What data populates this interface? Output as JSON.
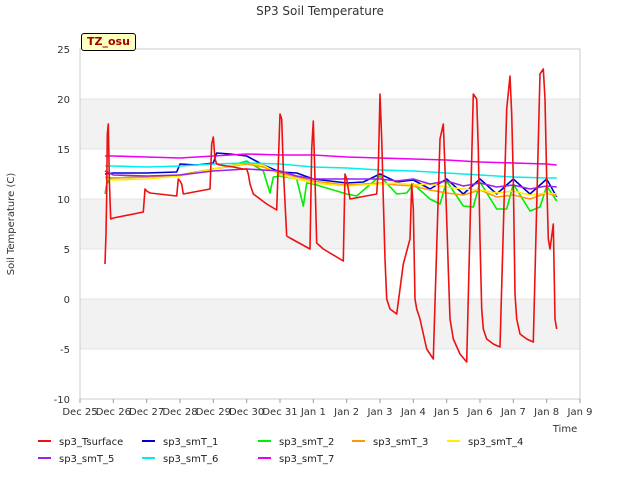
{
  "chart_data": {
    "type": "line",
    "title": "SP3 Soil Temperature",
    "xlabel": "Time",
    "ylabel": "Soil Temperature (C)",
    "site_label": "TZ_osu",
    "ylim": [
      -10,
      25
    ],
    "xlim": [
      0,
      15
    ],
    "yticks": [
      -10,
      -5,
      0,
      5,
      10,
      15,
      20,
      25
    ],
    "xticks": [
      {
        "x": 0,
        "label": "Dec 25"
      },
      {
        "x": 1,
        "label": "Dec 26"
      },
      {
        "x": 2,
        "label": "Dec 27"
      },
      {
        "x": 3,
        "label": "Dec 28"
      },
      {
        "x": 4,
        "label": "Dec 29"
      },
      {
        "x": 5,
        "label": "Dec 30"
      },
      {
        "x": 6,
        "label": "Dec 31"
      },
      {
        "x": 7,
        "label": "Jan 1"
      },
      {
        "x": 8,
        "label": "Jan 2"
      },
      {
        "x": 9,
        "label": "Jan 3"
      },
      {
        "x": 10,
        "label": "Jan 4"
      },
      {
        "x": 11,
        "label": "Jan 5"
      },
      {
        "x": 12,
        "label": "Jan 6"
      },
      {
        "x": 13,
        "label": "Jan 7"
      },
      {
        "x": 14,
        "label": "Jan 8"
      },
      {
        "x": 15,
        "label": "Jan 9"
      }
    ],
    "grid": "horizontal bands",
    "legend_position": "bottom",
    "series": [
      {
        "name": "sp3_Tsurface",
        "color": "#ee1111",
        "x": [
          0.75,
          0.78,
          0.8,
          0.82,
          0.85,
          0.88,
          0.92,
          1.0,
          1.9,
          1.95,
          2.0,
          2.05,
          2.1,
          2.9,
          2.95,
          3.0,
          3.05,
          3.1,
          3.9,
          3.95,
          4.0,
          4.05,
          4.1,
          4.2,
          4.4,
          4.6,
          4.9,
          5.0,
          5.05,
          5.1,
          5.2,
          5.4,
          5.6,
          5.9,
          5.95,
          6.0,
          6.05,
          6.1,
          6.2,
          6.3,
          6.9,
          6.95,
          7.0,
          7.05,
          7.1,
          7.2,
          7.3,
          7.9,
          7.95,
          8.0,
          8.05,
          8.1,
          8.9,
          8.95,
          9.0,
          9.05,
          9.1,
          9.15,
          9.2,
          9.3,
          9.5,
          9.7,
          9.9,
          9.95,
          10.0,
          10.05,
          10.1,
          10.2,
          10.4,
          10.6,
          10.8,
          10.9,
          10.95,
          11.0,
          11.05,
          11.1,
          11.2,
          11.4,
          11.6,
          11.8,
          11.9,
          11.95,
          12.0,
          12.05,
          12.1,
          12.2,
          12.4,
          12.6,
          12.8,
          12.9,
          12.95,
          13.0,
          13.05,
          13.1,
          13.2,
          13.4,
          13.6,
          13.8,
          13.9,
          13.95,
          14.0,
          14.05,
          14.1,
          14.2,
          14.25,
          14.3
        ],
        "y": [
          3.5,
          6.5,
          10.5,
          16.5,
          17.5,
          12.0,
          8.0,
          8.1,
          8.7,
          11.0,
          10.8,
          10.7,
          10.6,
          10.3,
          12.0,
          11.8,
          11.5,
          10.5,
          11.0,
          15.5,
          16.2,
          14.0,
          13.5,
          13.4,
          13.3,
          13.2,
          13.0,
          13.0,
          12.5,
          11.5,
          10.5,
          10.0,
          9.5,
          8.9,
          13.5,
          18.5,
          18.0,
          13.0,
          6.3,
          6.1,
          5.0,
          15.0,
          17.8,
          12.0,
          5.6,
          5.3,
          5.0,
          3.8,
          12.5,
          12.0,
          11.0,
          10.0,
          10.5,
          13.0,
          20.5,
          16.0,
          10.0,
          4.0,
          0.0,
          -1.0,
          -1.5,
          3.5,
          6.0,
          11.5,
          9.0,
          0.0,
          -1.0,
          -2.0,
          -5.0,
          -6.0,
          16.0,
          17.5,
          13.0,
          8.0,
          3.0,
          -2.0,
          -4.0,
          -5.5,
          -6.3,
          20.5,
          20.0,
          15.0,
          6.0,
          -1.0,
          -3.0,
          -4.0,
          -4.5,
          -4.8,
          19.0,
          22.3,
          18.5,
          12.0,
          0.5,
          -2.0,
          -3.5,
          -4.0,
          -4.3,
          22.5,
          23.0,
          20.0,
          12.0,
          6.0,
          5.0,
          7.5,
          -2.0,
          -3.0
        ]
      },
      {
        "name": "sp3_smT_1",
        "color": "#0000cc",
        "x": [
          0.75,
          1.0,
          2.0,
          2.9,
          3.0,
          3.5,
          4.0,
          4.1,
          4.5,
          5.0,
          5.5,
          6.0,
          6.5,
          7.0,
          7.5,
          8.0,
          8.5,
          9.0,
          9.5,
          10.0,
          10.5,
          11.0,
          11.5,
          12.0,
          12.5,
          13.0,
          13.5,
          14.0,
          14.3
        ],
        "y": [
          12.5,
          12.6,
          12.6,
          12.7,
          13.5,
          13.4,
          13.6,
          14.6,
          14.5,
          14.3,
          13.4,
          12.7,
          12.6,
          12.0,
          11.8,
          11.6,
          11.7,
          12.5,
          11.7,
          11.9,
          11.0,
          12.0,
          10.5,
          12.0,
          10.5,
          12.0,
          10.5,
          12.0,
          10.2
        ]
      },
      {
        "name": "sp3_smT_2",
        "color": "#00ee00",
        "x": [
          0.75,
          0.8,
          0.9,
          1.0,
          2.0,
          3.0,
          4.0,
          4.5,
          5.0,
          5.5,
          5.7,
          5.8,
          6.0,
          6.5,
          6.7,
          6.8,
          7.0,
          7.5,
          8.0,
          8.3,
          9.0,
          9.5,
          9.8,
          10.0,
          10.5,
          10.8,
          11.0,
          11.5,
          11.8,
          12.0,
          12.5,
          12.8,
          13.0,
          13.5,
          13.8,
          14.0,
          14.3
        ],
        "y": [
          10.5,
          11.5,
          12.0,
          12.1,
          12.2,
          12.4,
          13.0,
          13.3,
          13.8,
          12.8,
          10.6,
          12.2,
          12.3,
          12.0,
          9.3,
          11.6,
          11.5,
          11.0,
          10.5,
          10.3,
          12.3,
          10.5,
          10.6,
          11.5,
          10.0,
          9.5,
          11.8,
          9.3,
          9.2,
          11.7,
          9.0,
          9.0,
          11.5,
          8.8,
          9.2,
          11.3,
          9.8
        ]
      },
      {
        "name": "sp3_smT_3",
        "color": "#ff9900",
        "x": [
          0.75,
          1.0,
          2.0,
          3.0,
          4.0,
          5.0,
          5.5,
          6.0,
          7.0,
          8.0,
          9.0,
          9.5,
          10.0,
          10.5,
          11.0,
          11.5,
          12.0,
          12.5,
          13.0,
          13.5,
          14.0,
          14.3
        ],
        "y": [
          12.2,
          12.1,
          12.2,
          12.4,
          13.0,
          13.5,
          13.2,
          12.6,
          11.8,
          11.4,
          11.6,
          11.4,
          11.3,
          10.9,
          10.6,
          10.4,
          10.9,
          10.2,
          10.4,
          10.0,
          10.6,
          10.3
        ]
      },
      {
        "name": "sp3_smT_4",
        "color": "#ffee00",
        "x": [
          0.75,
          1.0,
          2.0,
          3.0,
          4.0,
          5.0,
          5.5,
          6.0,
          7.0,
          8.0,
          9.0,
          9.5,
          10.0,
          10.5,
          11.0,
          11.5,
          12.0,
          12.5,
          13.0,
          13.5,
          14.0,
          14.3
        ],
        "y": [
          12.0,
          11.9,
          12.0,
          12.3,
          13.0,
          13.6,
          13.4,
          12.4,
          11.6,
          11.3,
          11.5,
          11.6,
          11.4,
          11.5,
          11.2,
          11.0,
          10.9,
          10.6,
          10.8,
          10.4,
          10.6,
          10.5
        ]
      },
      {
        "name": "sp3_smT_5",
        "color": "#9922ee",
        "x": [
          0.75,
          1.0,
          2.0,
          3.0,
          4.0,
          5.0,
          6.0,
          6.5,
          7.0,
          8.0,
          9.0,
          9.5,
          10.0,
          10.5,
          11.0,
          11.5,
          12.0,
          12.5,
          13.0,
          13.5,
          14.0,
          14.3
        ],
        "y": [
          12.8,
          12.4,
          12.3,
          12.4,
          12.8,
          13.0,
          12.8,
          12.3,
          12.0,
          12.0,
          12.0,
          11.8,
          12.0,
          11.5,
          11.8,
          11.3,
          11.6,
          11.2,
          11.4,
          11.0,
          11.3,
          11.2
        ]
      },
      {
        "name": "sp3_smT_6",
        "color": "#00eeee",
        "x": [
          0.75,
          1.0,
          2.0,
          3.0,
          4.0,
          5.0,
          6.0,
          7.0,
          8.0,
          9.0,
          10.0,
          11.0,
          12.0,
          13.0,
          14.0,
          14.3
        ],
        "y": [
          13.3,
          13.3,
          13.2,
          13.3,
          13.5,
          13.6,
          13.5,
          13.2,
          13.1,
          12.9,
          12.8,
          12.6,
          12.4,
          12.2,
          12.1,
          12.1
        ]
      },
      {
        "name": "sp3_smT_7",
        "color": "#ee00ee",
        "x": [
          0.75,
          1.0,
          2.0,
          3.0,
          4.0,
          5.0,
          6.0,
          7.0,
          8.0,
          9.0,
          10.0,
          11.0,
          12.0,
          13.0,
          14.0,
          14.3
        ],
        "y": [
          14.3,
          14.3,
          14.2,
          14.1,
          14.3,
          14.5,
          14.4,
          14.4,
          14.2,
          14.1,
          14.0,
          13.9,
          13.7,
          13.6,
          13.5,
          13.4
        ]
      }
    ]
  }
}
